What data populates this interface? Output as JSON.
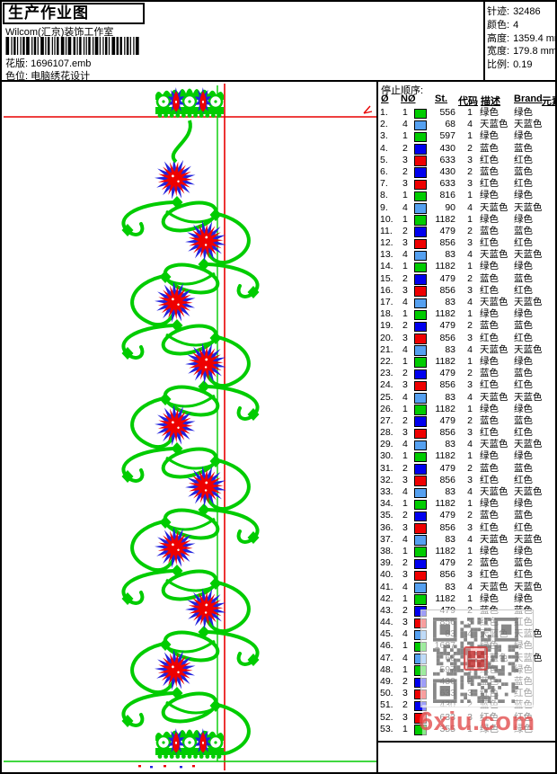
{
  "header": {
    "title": "生产作业图",
    "studio": "Wilcom(汇京)装饰工作室",
    "pattern_label": "花版:",
    "pattern_value": "1696107.emb",
    "colorway_label": "色位:",
    "colorway_value": "电脑绣花设计",
    "stats": [
      {
        "label": "针迹:",
        "value": "32486"
      },
      {
        "label": "颜色:",
        "value": "4"
      },
      {
        "label": "高度:",
        "value": "1359.4 mm"
      },
      {
        "label": "宽度:",
        "value": "179.8 mm"
      },
      {
        "label": "比例:",
        "value": "0.19"
      }
    ]
  },
  "stop_sequence": {
    "title": "停止顺序:",
    "columns": [
      "Ø",
      "NØ",
      "St.",
      "代码",
      "描述",
      "Brand",
      "元素"
    ],
    "colors": {
      "1": {
        "hex": "#00CC00",
        "name": "绿色"
      },
      "2": {
        "hex": "#0000EE",
        "name": "蓝色"
      },
      "3": {
        "hex": "#EE0000",
        "name": "红色"
      },
      "4": {
        "hex": "#55A0F0",
        "name": "天蓝色"
      }
    },
    "rows": [
      [
        1,
        1,
        556
      ],
      [
        2,
        4,
        68
      ],
      [
        3,
        1,
        597
      ],
      [
        4,
        2,
        430
      ],
      [
        5,
        3,
        633
      ],
      [
        6,
        2,
        430
      ],
      [
        7,
        3,
        633
      ],
      [
        8,
        1,
        816
      ],
      [
        9,
        4,
        90
      ],
      [
        10,
        1,
        1182
      ],
      [
        11,
        2,
        479
      ],
      [
        12,
        3,
        856
      ],
      [
        13,
        4,
        83
      ],
      [
        14,
        1,
        1182
      ],
      [
        15,
        2,
        479
      ],
      [
        16,
        3,
        856
      ],
      [
        17,
        4,
        83
      ],
      [
        18,
        1,
        1182
      ],
      [
        19,
        2,
        479
      ],
      [
        20,
        3,
        856
      ],
      [
        21,
        4,
        83
      ],
      [
        22,
        1,
        1182
      ],
      [
        23,
        2,
        479
      ],
      [
        24,
        3,
        856
      ],
      [
        25,
        4,
        83
      ],
      [
        26,
        1,
        1182
      ],
      [
        27,
        2,
        479
      ],
      [
        28,
        3,
        856
      ],
      [
        29,
        4,
        83
      ],
      [
        30,
        1,
        1182
      ],
      [
        31,
        2,
        479
      ],
      [
        32,
        3,
        856
      ],
      [
        33,
        4,
        83
      ],
      [
        34,
        1,
        1182
      ],
      [
        35,
        2,
        479
      ],
      [
        36,
        3,
        856
      ],
      [
        37,
        4,
        83
      ],
      [
        38,
        1,
        1182
      ],
      [
        39,
        2,
        479
      ],
      [
        40,
        3,
        856
      ],
      [
        41,
        4,
        83
      ],
      [
        42,
        1,
        1182
      ],
      [
        43,
        2,
        479
      ],
      [
        44,
        3,
        856
      ],
      [
        45,
        4,
        83
      ],
      [
        46,
        1,
        1687
      ],
      [
        47,
        4,
        68
      ],
      [
        48,
        1,
        597
      ],
      [
        49,
        2,
        430
      ],
      [
        50,
        3,
        633
      ],
      [
        51,
        2,
        430
      ],
      [
        52,
        3,
        633
      ],
      [
        53,
        1,
        355
      ]
    ]
  },
  "watermark": {
    "text": "6xiu.com"
  },
  "design": {
    "vine_color": "#00CC00",
    "flower_color": "#EE0000",
    "accent_color": "#2222DD",
    "guide_red": "#E80000",
    "guide_green": "#00CC00",
    "flowers_y": [
      109,
      178,
      246,
      314,
      383,
      451,
      519,
      587,
      655
    ]
  }
}
